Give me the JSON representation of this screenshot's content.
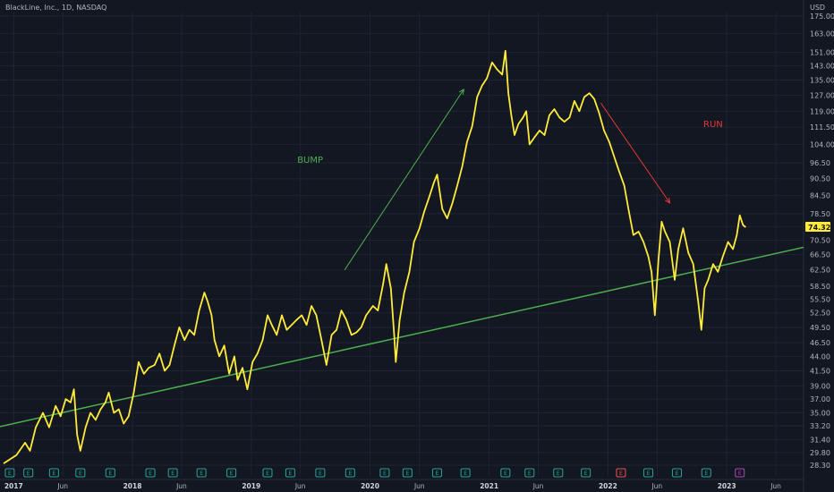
{
  "header": {
    "title": "BlackLine, Inc., 1D, NASDAQ"
  },
  "chart_data": {
    "type": "line",
    "title": "BlackLine, Inc., 1D, NASDAQ",
    "currency": "USD",
    "scale": "log",
    "ylim": [
      28.3,
      178
    ],
    "grid": true,
    "y_ticks": [
      175.0,
      163.0,
      151.0,
      143.0,
      135.0,
      127.0,
      119.0,
      111.5,
      104.0,
      96.5,
      90.5,
      84.5,
      78.5,
      74.5,
      70.5,
      66.5,
      62.5,
      58.5,
      55.5,
      52.5,
      49.5,
      46.5,
      44.0,
      41.5,
      39.0,
      37.0,
      35.0,
      33.2,
      31.4,
      29.8,
      28.3
    ],
    "y_tick_labels": [
      "175.00",
      "163.00",
      "151.00",
      "143.00",
      "135.00",
      "127.00",
      "119.00",
      "111.50",
      "104.00",
      "96.50",
      "90.50",
      "84.50",
      "78.50",
      "74.50",
      "70.50",
      "66.50",
      "62.50",
      "58.50",
      "55.50",
      "52.50",
      "49.50",
      "46.50",
      "44.00",
      "41.50",
      "39.00",
      "37.00",
      "35.00",
      "33.20",
      "31.40",
      "29.80",
      "28.30"
    ],
    "x_range": [
      "2016-11-20",
      "2023-08-25"
    ],
    "x_ticks": [
      {
        "label": "2017",
        "date": "2017-01-01",
        "major": true
      },
      {
        "label": "Jun",
        "date": "2017-06-01",
        "major": false
      },
      {
        "label": "2018",
        "date": "2018-01-01",
        "major": true
      },
      {
        "label": "Jun",
        "date": "2018-06-01",
        "major": false
      },
      {
        "label": "2019",
        "date": "2019-01-01",
        "major": true
      },
      {
        "label": "Jun",
        "date": "2019-06-01",
        "major": false
      },
      {
        "label": "2020",
        "date": "2020-01-01",
        "major": true
      },
      {
        "label": "Jun",
        "date": "2020-06-01",
        "major": false
      },
      {
        "label": "2021",
        "date": "2021-01-01",
        "major": true
      },
      {
        "label": "Jun",
        "date": "2021-06-01",
        "major": false
      },
      {
        "label": "2022",
        "date": "2022-01-01",
        "major": true
      },
      {
        "label": "Jun",
        "date": "2022-06-01",
        "major": false
      },
      {
        "label": "2023",
        "date": "2023-01-01",
        "major": true
      },
      {
        "label": "Jun",
        "date": "2023-06-01",
        "major": false
      }
    ],
    "series": [
      {
        "color": "#ffeb3b",
        "points": [
          [
            "2016-12-01",
            28.5
          ],
          [
            "2017-01-10",
            29.5
          ],
          [
            "2017-02-05",
            31
          ],
          [
            "2017-02-20",
            30
          ],
          [
            "2017-03-10",
            33
          ],
          [
            "2017-04-01",
            35
          ],
          [
            "2017-04-20",
            33
          ],
          [
            "2017-05-10",
            36
          ],
          [
            "2017-05-25",
            34.5
          ],
          [
            "2017-06-10",
            37
          ],
          [
            "2017-06-25",
            36.5
          ],
          [
            "2017-07-05",
            38.5
          ],
          [
            "2017-07-15",
            32
          ],
          [
            "2017-07-25",
            30
          ],
          [
            "2017-08-10",
            33
          ],
          [
            "2017-08-25",
            35
          ],
          [
            "2017-09-10",
            34
          ],
          [
            "2017-09-25",
            35.5
          ],
          [
            "2017-10-10",
            36.5
          ],
          [
            "2017-10-20",
            38
          ],
          [
            "2017-11-05",
            35
          ],
          [
            "2017-11-20",
            35.5
          ],
          [
            "2017-12-05",
            33.5
          ],
          [
            "2017-12-20",
            34.5
          ],
          [
            "2018-01-05",
            38
          ],
          [
            "2018-01-20",
            43
          ],
          [
            "2018-02-05",
            41
          ],
          [
            "2018-02-20",
            42
          ],
          [
            "2018-03-10",
            42.5
          ],
          [
            "2018-03-25",
            44.5
          ],
          [
            "2018-04-10",
            41.5
          ],
          [
            "2018-04-25",
            42.5
          ],
          [
            "2018-05-10",
            46
          ],
          [
            "2018-05-25",
            49.5
          ],
          [
            "2018-06-10",
            47
          ],
          [
            "2018-06-25",
            49
          ],
          [
            "2018-07-10",
            48
          ],
          [
            "2018-07-25",
            53
          ],
          [
            "2018-08-10",
            57
          ],
          [
            "2018-08-20",
            55
          ],
          [
            "2018-09-01",
            52
          ],
          [
            "2018-09-10",
            47
          ],
          [
            "2018-09-25",
            44
          ],
          [
            "2018-10-10",
            46
          ],
          [
            "2018-10-25",
            41
          ],
          [
            "2018-11-10",
            44
          ],
          [
            "2018-11-20",
            40
          ],
          [
            "2018-12-05",
            42
          ],
          [
            "2018-12-20",
            38.5
          ],
          [
            "2019-01-05",
            43
          ],
          [
            "2019-01-20",
            44.5
          ],
          [
            "2019-02-05",
            47
          ],
          [
            "2019-02-20",
            52
          ],
          [
            "2019-03-05",
            50
          ],
          [
            "2019-03-20",
            48
          ],
          [
            "2019-04-05",
            52
          ],
          [
            "2019-04-20",
            49
          ],
          [
            "2019-05-05",
            50
          ],
          [
            "2019-05-20",
            51
          ],
          [
            "2019-06-05",
            52
          ],
          [
            "2019-06-20",
            50
          ],
          [
            "2019-07-05",
            54
          ],
          [
            "2019-07-20",
            52
          ],
          [
            "2019-08-05",
            47
          ],
          [
            "2019-08-20",
            42.5
          ],
          [
            "2019-09-05",
            48
          ],
          [
            "2019-09-20",
            49
          ],
          [
            "2019-10-05",
            53
          ],
          [
            "2019-10-20",
            51
          ],
          [
            "2019-11-05",
            48
          ],
          [
            "2019-11-20",
            48.5
          ],
          [
            "2019-12-05",
            49.5
          ],
          [
            "2019-12-20",
            52
          ],
          [
            "2020-01-10",
            54
          ],
          [
            "2020-01-25",
            53
          ],
          [
            "2020-02-10",
            59
          ],
          [
            "2020-02-20",
            64
          ],
          [
            "2020-03-05",
            58
          ],
          [
            "2020-03-15",
            48
          ],
          [
            "2020-03-20",
            43
          ],
          [
            "2020-04-01",
            51
          ],
          [
            "2020-04-15",
            57
          ],
          [
            "2020-05-01",
            62
          ],
          [
            "2020-05-15",
            70
          ],
          [
            "2020-06-01",
            74
          ],
          [
            "2020-06-15",
            79
          ],
          [
            "2020-07-01",
            84
          ],
          [
            "2020-07-15",
            89
          ],
          [
            "2020-07-25",
            92
          ],
          [
            "2020-08-10",
            80
          ],
          [
            "2020-08-25",
            77
          ],
          [
            "2020-09-10",
            82
          ],
          [
            "2020-09-25",
            88
          ],
          [
            "2020-10-10",
            95
          ],
          [
            "2020-10-25",
            105
          ],
          [
            "2020-11-10",
            112
          ],
          [
            "2020-11-25",
            126
          ],
          [
            "2020-12-10",
            132
          ],
          [
            "2020-12-25",
            136
          ],
          [
            "2021-01-10",
            145
          ],
          [
            "2021-01-25",
            141
          ],
          [
            "2021-02-10",
            138
          ],
          [
            "2021-02-20",
            152
          ],
          [
            "2021-03-01",
            128
          ],
          [
            "2021-03-10",
            117
          ],
          [
            "2021-03-20",
            108
          ],
          [
            "2021-04-01",
            113
          ],
          [
            "2021-04-15",
            116
          ],
          [
            "2021-04-25",
            119
          ],
          [
            "2021-05-05",
            104
          ],
          [
            "2021-05-20",
            107
          ],
          [
            "2021-06-05",
            110
          ],
          [
            "2021-06-20",
            108
          ],
          [
            "2021-07-05",
            117
          ],
          [
            "2021-07-20",
            120
          ],
          [
            "2021-08-05",
            116
          ],
          [
            "2021-08-20",
            114
          ],
          [
            "2021-09-05",
            116
          ],
          [
            "2021-09-20",
            124
          ],
          [
            "2021-10-05",
            119
          ],
          [
            "2021-10-20",
            126
          ],
          [
            "2021-11-05",
            128
          ],
          [
            "2021-11-20",
            125
          ],
          [
            "2021-12-05",
            118
          ],
          [
            "2021-12-20",
            110
          ],
          [
            "2022-01-05",
            105
          ],
          [
            "2022-01-20",
            99
          ],
          [
            "2022-02-05",
            93
          ],
          [
            "2022-02-20",
            88
          ],
          [
            "2022-03-05",
            80
          ],
          [
            "2022-03-20",
            72
          ],
          [
            "2022-04-05",
            73
          ],
          [
            "2022-04-20",
            70
          ],
          [
            "2022-05-05",
            66
          ],
          [
            "2022-05-15",
            62
          ],
          [
            "2022-05-25",
            52
          ],
          [
            "2022-06-05",
            65
          ],
          [
            "2022-06-15",
            76
          ],
          [
            "2022-06-25",
            73
          ],
          [
            "2022-07-10",
            70
          ],
          [
            "2022-07-25",
            60
          ],
          [
            "2022-08-05",
            68
          ],
          [
            "2022-08-20",
            74
          ],
          [
            "2022-09-05",
            67
          ],
          [
            "2022-09-20",
            64
          ],
          [
            "2022-10-05",
            55
          ],
          [
            "2022-10-15",
            49
          ],
          [
            "2022-10-25",
            58
          ],
          [
            "2022-11-05",
            60
          ],
          [
            "2022-11-20",
            64
          ],
          [
            "2022-12-05",
            62
          ],
          [
            "2022-12-20",
            66
          ],
          [
            "2023-01-05",
            70
          ],
          [
            "2023-01-20",
            68
          ],
          [
            "2023-02-01",
            72
          ],
          [
            "2023-02-10",
            78
          ],
          [
            "2023-02-20",
            75
          ],
          [
            "2023-02-28",
            74.32
          ]
        ]
      }
    ],
    "last_value": "74.32",
    "trendline": {
      "color": "#4caf50",
      "points": [
        [
          "2016-11-20",
          33.1
        ],
        [
          "2023-08-25",
          68.5
        ]
      ]
    },
    "annotations": [
      {
        "text": "BUMP",
        "color": "#4caf50",
        "date": "2019-07-01",
        "value": 96.5
      },
      {
        "text": "RUN",
        "color": "#e53935",
        "date": "2022-11-20",
        "value": 111.5
      }
    ],
    "arrows": [
      {
        "color": "#4caf50",
        "from": [
          "2019-10-15",
          62.5
        ],
        "to": [
          "2020-10-15",
          130
        ]
      },
      {
        "color": "#e53935",
        "from": [
          "2021-12-10",
          123
        ],
        "to": [
          "2022-07-10",
          82
        ]
      }
    ],
    "events": {
      "dates": [
        "2016-12-20",
        "2017-02-15",
        "2017-05-05",
        "2017-07-25",
        "2017-10-25",
        "2018-02-25",
        "2018-05-05",
        "2018-08-01",
        "2018-11-01",
        "2019-02-20",
        "2019-05-01",
        "2019-08-01",
        "2019-11-01",
        "2020-02-15",
        "2020-04-25",
        "2020-07-25",
        "2020-10-20",
        "2021-02-20",
        "2021-05-05",
        "2021-08-01",
        "2021-10-25",
        "2022-02-10",
        "2022-05-05",
        "2022-08-01",
        "2022-10-30",
        "2023-02-10"
      ],
      "label": "E",
      "colors": {
        "default": "#26a69a",
        "2022-02-10": "#ef5350",
        "2023-02-10": "#ab47bc"
      }
    }
  }
}
